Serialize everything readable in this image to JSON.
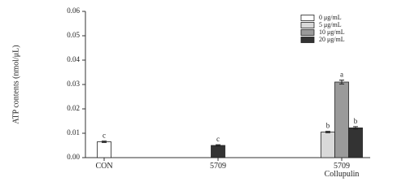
{
  "chart_data": {
    "type": "bar",
    "ylabel": "ATP contents (nmol/μL)",
    "categories": [
      "CON",
      "5709",
      "5709\nCollupulin"
    ],
    "series": [
      {
        "name": "0 μg/mL",
        "color": "#ffffff",
        "values": [
          0.0065,
          null,
          null
        ],
        "errors": [
          0.0003,
          null,
          null
        ],
        "letters": [
          "c",
          null,
          null
        ]
      },
      {
        "name": "5 μg/mL",
        "color": "#d9d9d9",
        "values": [
          null,
          null,
          0.0105
        ],
        "errors": [
          null,
          null,
          0.0003
        ],
        "letters": [
          null,
          null,
          "b"
        ]
      },
      {
        "name": "10 μg/mL",
        "color": "#9a9a9a",
        "values": [
          null,
          null,
          0.031
        ],
        "errors": [
          null,
          null,
          0.0008
        ],
        "letters": [
          null,
          null,
          "a"
        ]
      },
      {
        "name": "20 μg/mL",
        "color": "#333333",
        "values": [
          null,
          0.005,
          0.0122
        ],
        "errors": [
          null,
          0.0003,
          0.0005
        ],
        "letters": [
          null,
          "c",
          "b"
        ]
      }
    ],
    "ylim": [
      0,
      0.06
    ],
    "yticks": [
      {
        "value": 0,
        "label": "0.00"
      },
      0.01,
      0.02,
      0.03,
      0.04,
      0.05,
      0.06
    ],
    "legend": "upper right"
  }
}
